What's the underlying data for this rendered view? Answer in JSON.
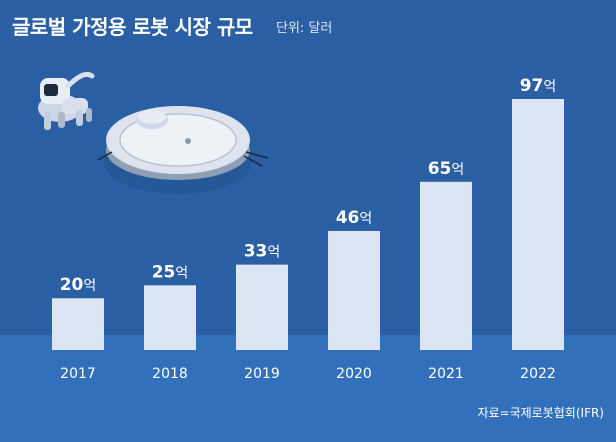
{
  "header": {
    "title": "글로벌 가정용 로봇 시장 규모",
    "unit": "단위: 달러"
  },
  "footer": {
    "source": "자료=국제로봇협회(IFR)"
  },
  "icons": [
    "robot-dog-icon",
    "robot-vacuum-icon"
  ],
  "colors": {
    "background": "#2a5fa3",
    "bar": "#dbe5f3",
    "text": "#ffffff"
  },
  "chart_data": {
    "type": "bar",
    "title": "글로벌 가정용 로봇 시장 규모",
    "unit": "단위: 달러",
    "categories": [
      "2017",
      "2018",
      "2019",
      "2020",
      "2021",
      "2022"
    ],
    "values": [
      20,
      25,
      33,
      46,
      65,
      97
    ],
    "value_labels": [
      "20억",
      "25억",
      "33억",
      "46억",
      "65억",
      "97억"
    ],
    "value_suffix": "억",
    "ylim": [
      0,
      97
    ],
    "grid": false,
    "legend": "none"
  }
}
